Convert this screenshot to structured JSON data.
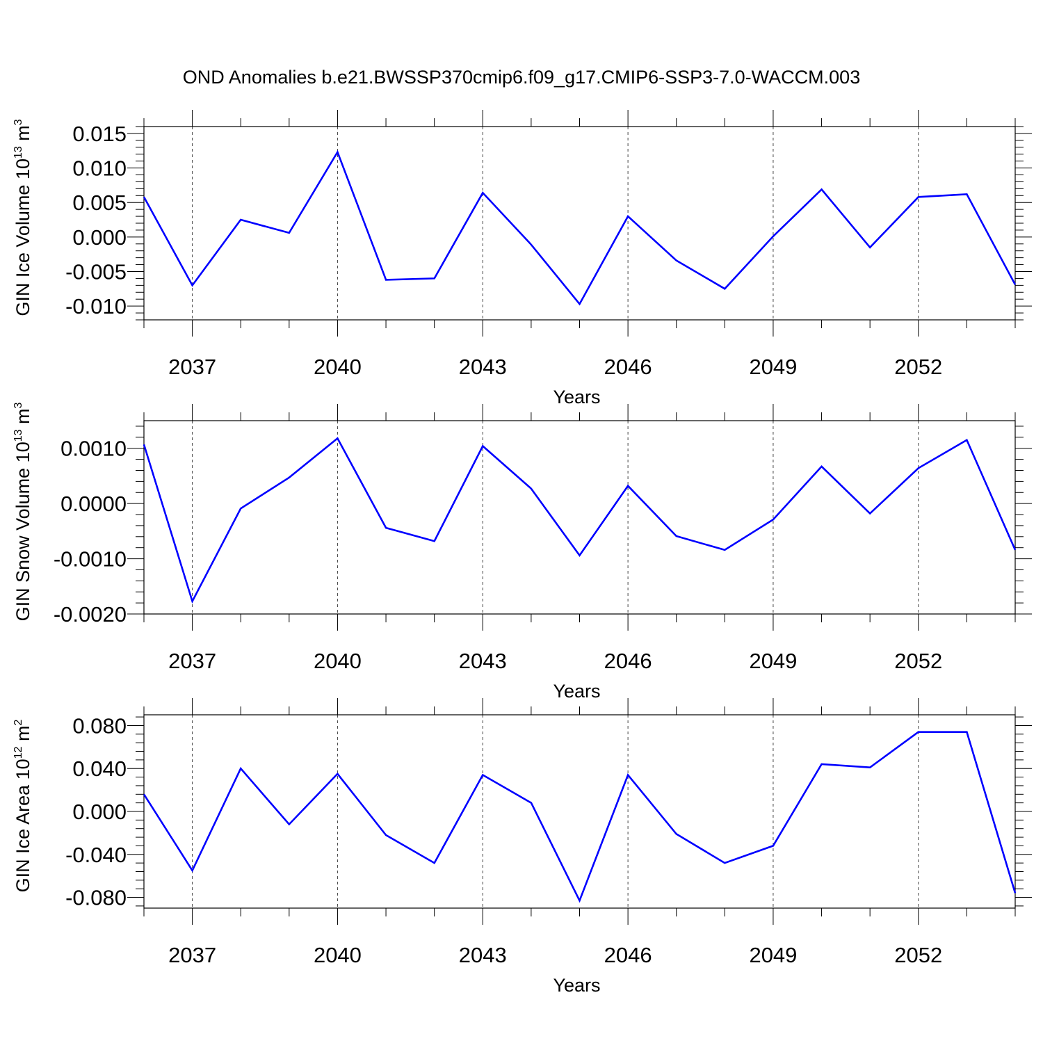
{
  "title": "OND Anomalies b.e21.BWSSP370cmip6.f09_g17.CMIP6-SSP3-7.0-WACCM.003",
  "line_color": "#0000ff",
  "chart_data": [
    {
      "type": "line",
      "ylabel": "GIN Ice Volume",
      "ylabel_unit_base": "10",
      "ylabel_unit_exp": "13",
      "ylabel_unit": "m",
      "ylabel_unit_pow": "3",
      "xlabel": "Years",
      "xlim": [
        2036,
        2054
      ],
      "ylim": [
        -0.012,
        0.016
      ],
      "yticks": [
        -0.01,
        -0.005,
        0.0,
        0.005,
        0.01,
        0.015
      ],
      "yticklabels": [
        "-0.010",
        "-0.005",
        "0.000",
        "0.005",
        "0.010",
        "0.015"
      ],
      "xticks": [
        2037,
        2040,
        2043,
        2046,
        2049,
        2052
      ],
      "xticklabels": [
        "2037",
        "2040",
        "2043",
        "2046",
        "2049",
        "2052"
      ],
      "grid": "dashed vertical at major x ticks",
      "x": [
        2036,
        2037,
        2038,
        2039,
        2040,
        2041,
        2042,
        2043,
        2044,
        2045,
        2046,
        2047,
        2048,
        2049,
        2050,
        2051,
        2052,
        2053,
        2054
      ],
      "series": [
        {
          "values": [
            0.0058,
            -0.007,
            0.0025,
            0.0006,
            0.0123,
            -0.0062,
            -0.006,
            0.0064,
            -0.0011,
            -0.0097,
            0.003,
            -0.0034,
            -0.0075,
            0.0001,
            0.0069,
            -0.0015,
            0.0058,
            0.0062,
            -0.0069
          ]
        }
      ]
    },
    {
      "type": "line",
      "ylabel": "GIN Snow Volume",
      "ylabel_unit_base": "10",
      "ylabel_unit_exp": "13",
      "ylabel_unit": "m",
      "ylabel_unit_pow": "3",
      "xlabel": "Years",
      "xlim": [
        2036,
        2054
      ],
      "ylim": [
        -0.002,
        0.0015
      ],
      "yticks": [
        -0.002,
        -0.001,
        0.0,
        0.001
      ],
      "yticklabels": [
        "-0.0020",
        "-0.0010",
        "0.0000",
        "0.0010"
      ],
      "xticks": [
        2037,
        2040,
        2043,
        2046,
        2049,
        2052
      ],
      "xticklabels": [
        "2037",
        "2040",
        "2043",
        "2046",
        "2049",
        "2052"
      ],
      "grid": "dashed vertical at major x ticks",
      "x": [
        2036,
        2037,
        2038,
        2039,
        2040,
        2041,
        2042,
        2043,
        2044,
        2045,
        2046,
        2047,
        2048,
        2049,
        2050,
        2051,
        2052,
        2053,
        2054
      ],
      "series": [
        {
          "values": [
            0.00107,
            -0.00177,
            -9e-05,
            0.00047,
            0.00118,
            -0.00044,
            -0.00068,
            0.00104,
            0.00027,
            -0.00094,
            0.00032,
            -0.00059,
            -0.00084,
            -0.00029,
            0.00067,
            -0.00018,
            0.00064,
            0.00115,
            -0.00084
          ]
        }
      ]
    },
    {
      "type": "line",
      "ylabel": "GIN Ice Area",
      "ylabel_unit_base": "10",
      "ylabel_unit_exp": "12",
      "ylabel_unit": "m",
      "ylabel_unit_pow": "2",
      "xlabel": "Years",
      "xlim": [
        2036,
        2054
      ],
      "ylim": [
        -0.09,
        0.09
      ],
      "yticks": [
        -0.08,
        -0.04,
        0.0,
        0.04,
        0.08
      ],
      "yticklabels": [
        "-0.080",
        "-0.040",
        "0.000",
        "0.040",
        "0.080"
      ],
      "xticks": [
        2037,
        2040,
        2043,
        2046,
        2049,
        2052
      ],
      "xticklabels": [
        "2037",
        "2040",
        "2043",
        "2046",
        "2049",
        "2052"
      ],
      "grid": "dashed vertical at major x ticks",
      "x": [
        2036,
        2037,
        2038,
        2039,
        2040,
        2041,
        2042,
        2043,
        2044,
        2045,
        2046,
        2047,
        2048,
        2049,
        2050,
        2051,
        2052,
        2053,
        2054
      ],
      "series": [
        {
          "values": [
            0.016,
            -0.055,
            0.04,
            -0.012,
            0.035,
            -0.022,
            -0.048,
            0.034,
            0.008,
            -0.083,
            0.034,
            -0.021,
            -0.048,
            -0.032,
            0.044,
            0.041,
            0.074,
            0.074,
            -0.076
          ]
        }
      ]
    }
  ]
}
